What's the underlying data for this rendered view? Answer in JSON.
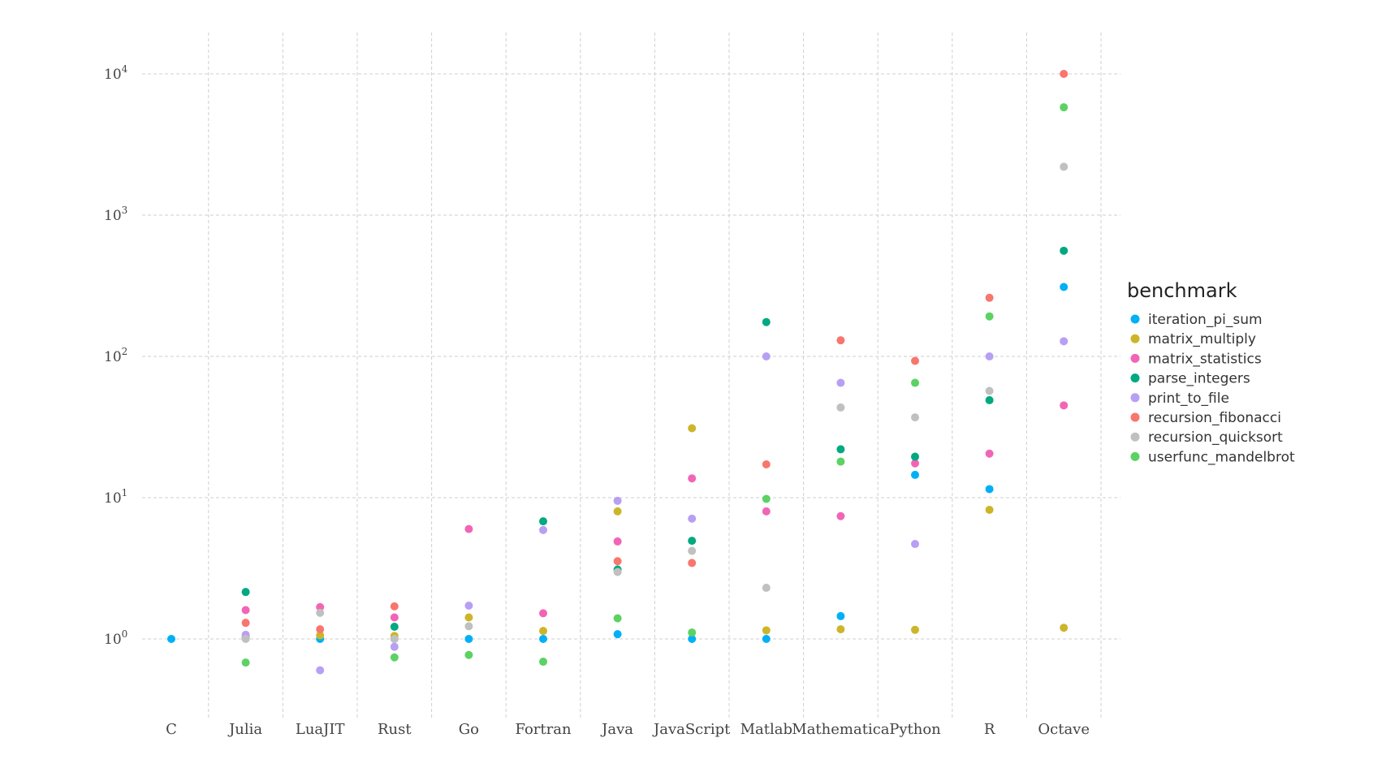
{
  "chart_data": {
    "type": "scatter",
    "yscale": "log",
    "ylim": [
      0.35,
      15000
    ],
    "y_ticks": [
      1,
      10,
      100,
      1000,
      10000
    ],
    "grid": true,
    "legend_position": "right",
    "categories": [
      "C",
      "Julia",
      "LuaJIT",
      "Rust",
      "Go",
      "Fortran",
      "Java",
      "JavaScript",
      "Matlab",
      "Mathematica",
      "Python",
      "R",
      "Octave"
    ],
    "legend": {
      "title": "benchmark"
    },
    "series": [
      {
        "name": "iteration_pi_sum",
        "color": "#00B0F6",
        "values": [
          1.0,
          1.01,
          1.0,
          1.0,
          1.0,
          1.0,
          1.08,
          1.0,
          1.0,
          1.45,
          14.5,
          11.5,
          310
        ]
      },
      {
        "name": "matrix_multiply",
        "color": "#CDB52A",
        "values": [
          null,
          1.03,
          1.06,
          1.05,
          1.42,
          1.14,
          8.0,
          31.0,
          1.15,
          1.17,
          1.16,
          8.2,
          1.2
        ]
      },
      {
        "name": "matrix_statistics",
        "color": "#F265B6",
        "values": [
          null,
          1.6,
          1.68,
          1.42,
          6.0,
          1.52,
          4.9,
          13.7,
          8.0,
          7.4,
          17.5,
          20.5,
          45.0
        ]
      },
      {
        "name": "parse_integers",
        "color": "#00A97F",
        "values": [
          null,
          2.15,
          null,
          1.22,
          null,
          6.8,
          3.1,
          4.95,
          175,
          22.0,
          19.5,
          49.0,
          560
        ]
      },
      {
        "name": "print_to_file",
        "color": "#B79FF5",
        "values": [
          null,
          1.07,
          0.6,
          0.88,
          1.72,
          5.9,
          9.5,
          7.1,
          100,
          65,
          4.7,
          100,
          128
        ]
      },
      {
        "name": "recursion_fibonacci",
        "color": "#F8766D",
        "values": [
          null,
          1.3,
          1.17,
          1.7,
          null,
          null,
          3.55,
          3.45,
          17.2,
          130,
          93,
          260,
          10000
        ]
      },
      {
        "name": "recursion_quicksort",
        "color": "#C0C0C0",
        "values": [
          null,
          1.0,
          1.53,
          1.0,
          1.23,
          null,
          2.98,
          4.2,
          2.3,
          43.5,
          37,
          57,
          2200
        ]
      },
      {
        "name": "userfunc_mandelbrot",
        "color": "#5CD263",
        "values": [
          null,
          0.68,
          null,
          0.74,
          0.77,
          0.69,
          1.4,
          1.11,
          9.8,
          18,
          65,
          192,
          5800
        ]
      }
    ]
  }
}
